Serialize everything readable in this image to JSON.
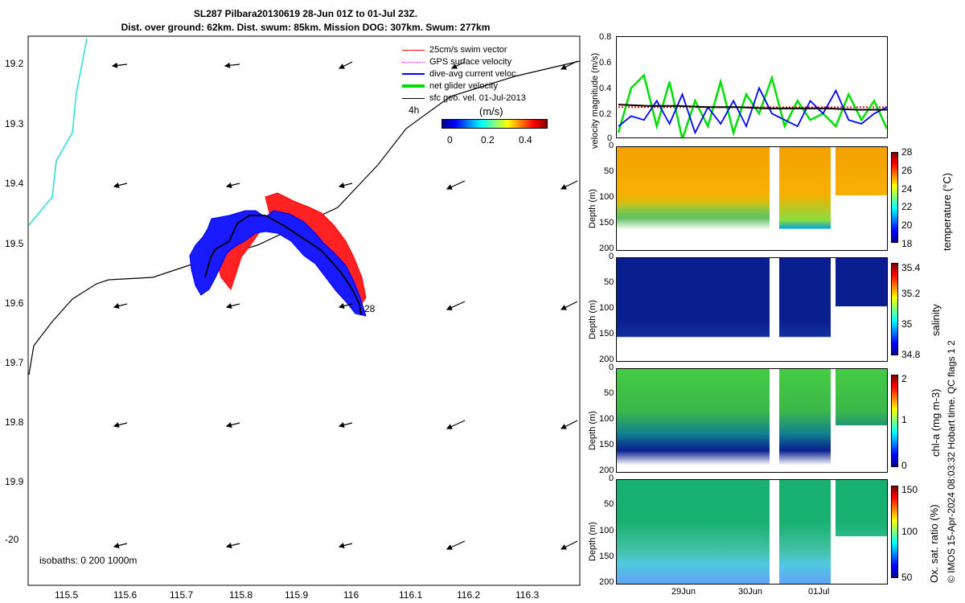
{
  "title": {
    "line1": "SL287 Pilbara20130619 28-Jun 01Z to 01-Jul 23Z.",
    "line2": "Dist. over ground: 62km. Dist. swum: 85km. Mission DOG: 307km. Swum: 277km"
  },
  "legend": [
    {
      "label": "25cm/s swim vector",
      "color": "#ff0000"
    },
    {
      "label": "GPS surface velocity",
      "color": "#ff00ff"
    },
    {
      "label": "dive-avg current veloc.",
      "color": "#0000ff"
    },
    {
      "label": "net glider velocity",
      "color": "#00dd00"
    },
    {
      "label": "sfc geo. vel. 01-Jul-2013",
      "color": "#000000"
    }
  ],
  "colorbar": {
    "title": "(m/s)",
    "header": "4h",
    "ticks": [
      "0",
      "0.2",
      "0.4"
    ]
  },
  "map": {
    "isobaths_label": "isobaths: 0   200  1000m",
    "annotation": "28",
    "x_ticks": [
      "115.5",
      "115.6",
      "115.7",
      "115.8",
      "115.9",
      "116",
      "116.1",
      "116.2",
      "116.3"
    ],
    "y_ticks": [
      "19.2",
      "19.3",
      "19.4",
      "19.5",
      "19.6",
      "19.7",
      "19.8",
      "19.9",
      "-20"
    ]
  },
  "chart_data": [
    {
      "type": "line",
      "ylabel": "velocity magnitude (m/s)",
      "ylim": [
        0,
        0.8
      ],
      "y_ticks": [
        "0.8",
        "0.6",
        "0.4",
        "0.2",
        "0"
      ],
      "series": [
        {
          "color": "#ff0000",
          "values": [
            0.25,
            0.25,
            0.25,
            0.25,
            0.25,
            0.25,
            0.25,
            0.25,
            0.25,
            0.25
          ]
        },
        {
          "color": "#00dd00",
          "values": [
            0.05,
            0.4,
            0.5,
            0.1,
            0.45,
            0.0,
            0.3,
            0.1,
            0.45,
            0.05,
            0.35,
            0.2,
            0.48,
            0.1,
            0.3,
            0.15,
            0.2,
            0.1,
            0.35,
            0.15,
            0.3,
            0.08
          ]
        },
        {
          "color": "#0000ff",
          "values": [
            0.1,
            0.18,
            0.15,
            0.3,
            0.12,
            0.35,
            0.05,
            0.25,
            0.12,
            0.3,
            0.1,
            0.4,
            0.2,
            0.15,
            0.1,
            0.3,
            0.2,
            0.38,
            0.15,
            0.12,
            0.2,
            0.25
          ]
        },
        {
          "color": "#000000",
          "values": [
            0.27,
            0.26,
            0.26,
            0.25,
            0.25,
            0.24,
            0.24,
            0.24,
            0.23,
            0.23
          ]
        }
      ]
    },
    {
      "type": "heatmap",
      "ylabel": "Depth (m)",
      "y_ticks": [
        "0",
        "50",
        "100",
        "150",
        "200"
      ],
      "colorbar_label": "temperature (°C)",
      "colorbar_ticks": [
        "28",
        "26",
        "24",
        "22",
        "20",
        "18"
      ]
    },
    {
      "type": "heatmap",
      "ylabel": "Depth (m)",
      "y_ticks": [
        "0",
        "50",
        "100",
        "150",
        "200"
      ],
      "colorbar_label": "salinity",
      "colorbar_ticks": [
        "35.4",
        "35.2",
        "35",
        "34.8"
      ]
    },
    {
      "type": "heatmap",
      "ylabel": "Depth (m)",
      "y_ticks": [
        "0",
        "50",
        "100",
        "150",
        "200"
      ],
      "colorbar_label": "chl-a (mg m-3)",
      "colorbar_ticks": [
        "2",
        "1",
        "0"
      ]
    },
    {
      "type": "heatmap",
      "ylabel": "Depth (m)",
      "y_ticks": [
        "0",
        "50",
        "100",
        "150",
        "200"
      ],
      "colorbar_label": "Ox. sat. ratio (%)",
      "colorbar_ticks": [
        "150",
        "100",
        "50"
      ]
    }
  ],
  "x_ticks_time": [
    "29Jun",
    "30Jun",
    "01Jul"
  ],
  "copyright": "© IMOS 15-Apr-2024 08:03:32 Hobart time. QC flags 1  2"
}
